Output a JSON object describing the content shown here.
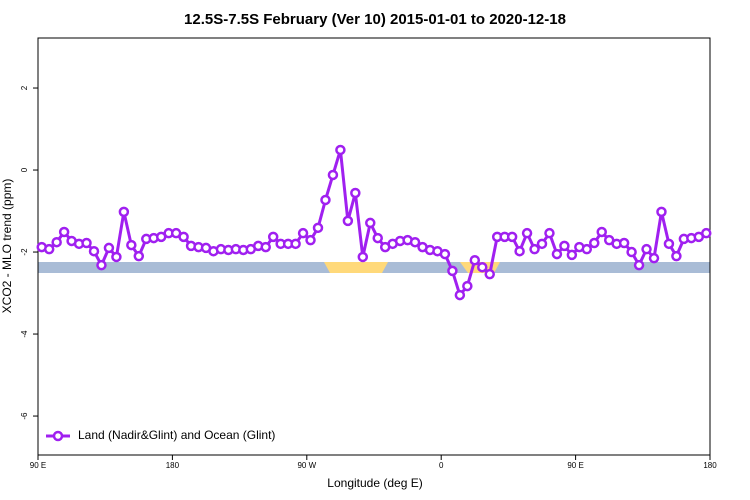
{
  "chart_data": {
    "type": "line",
    "title": "12.5S-7.5S February (Ver 10)   2015-01-01 to 2020-12-18",
    "xlabel": "Longitude (deg E)",
    "ylabel": "XCO2 - MLO trend (ppm)",
    "xlim": [
      -270,
      180
    ],
    "xticks": [
      {
        "value": -270,
        "label": "90 E"
      },
      {
        "value": -180,
        "label": "180"
      },
      {
        "value": -90,
        "label": "90 W"
      },
      0,
      {
        "value": 90,
        "label": "90 E"
      },
      180
    ],
    "ylim": [
      -6.95,
      3.22
    ],
    "yticks": [
      2,
      0,
      -2,
      -4,
      -6
    ],
    "legend": "bottom-left",
    "series": [
      {
        "name": "Land (Nadir&Glint) and Ocean (Glint)",
        "color": "#a020f0",
        "x": [
          -267.5,
          -262.5,
          -257.5,
          -252.5,
          -247.5,
          -242.5,
          -237.5,
          -232.5,
          -227.5,
          -222.5,
          -217.5,
          -212.5,
          -207.5,
          -202.5,
          -197.5,
          -192.5,
          -187.5,
          -182.5,
          -177.5,
          -172.5,
          -167.5,
          -162.5,
          -157.5,
          -152.5,
          -147.5,
          -142.5,
          -137.5,
          -132.5,
          -127.5,
          -122.5,
          -117.5,
          -112.5,
          -107.5,
          -102.5,
          -97.5,
          -92.5,
          -87.5,
          -82.5,
          -77.5,
          -72.5,
          -67.5,
          -62.5,
          -57.5,
          -52.5,
          -47.5,
          -42.5,
          -37.5,
          -32.5,
          -27.5,
          -22.5,
          -17.5,
          -12.5,
          -7.5,
          -2.5,
          2.5,
          7.5,
          12.5,
          17.5,
          22.5,
          27.5,
          32.5,
          37.5,
          42.5,
          47.5,
          52.5,
          57.5,
          62.5,
          67.5,
          72.5,
          77.5,
          82.5,
          87.5,
          92.5,
          97.5,
          102.5,
          107.5,
          112.5,
          117.5,
          122.5,
          127.5,
          132.5,
          137.5,
          142.5,
          147.5,
          152.5,
          157.5,
          162.5,
          167.5,
          172.5,
          177.5
        ],
        "values": [
          -1.88,
          -1.93,
          -1.76,
          -1.51,
          -1.73,
          -1.8,
          -1.78,
          -1.98,
          -2.32,
          -1.9,
          -2.12,
          -1.02,
          -1.83,
          -2.1,
          -1.68,
          -1.66,
          -1.63,
          -1.54,
          -1.54,
          -1.63,
          -1.85,
          -1.88,
          -1.9,
          -1.98,
          -1.93,
          -1.95,
          -1.93,
          -1.95,
          -1.93,
          -1.85,
          -1.88,
          -1.63,
          -1.8,
          -1.8,
          -1.8,
          -1.54,
          -1.71,
          -1.41,
          -0.73,
          -0.12,
          0.49,
          -1.24,
          -0.56,
          -2.12,
          -1.29,
          -1.66,
          -1.88,
          -1.8,
          -1.73,
          -1.71,
          -1.76,
          -1.88,
          -1.95,
          -1.98,
          -2.05,
          -2.46,
          -3.05,
          -2.83,
          -2.2,
          -2.37,
          -2.54,
          -1.63,
          -1.63,
          -1.63,
          -1.98,
          -1.54,
          -1.93,
          -1.8,
          -1.54,
          -2.05,
          -1.85,
          -2.07,
          -1.88,
          -1.93,
          -1.78,
          -1.51,
          -1.71,
          -1.8,
          -1.78,
          -2.0,
          -2.32,
          -1.93,
          -2.15,
          -1.02,
          -1.8,
          -2.1,
          -1.68,
          -1.66,
          -1.63,
          -1.54
        ]
      }
    ]
  }
}
